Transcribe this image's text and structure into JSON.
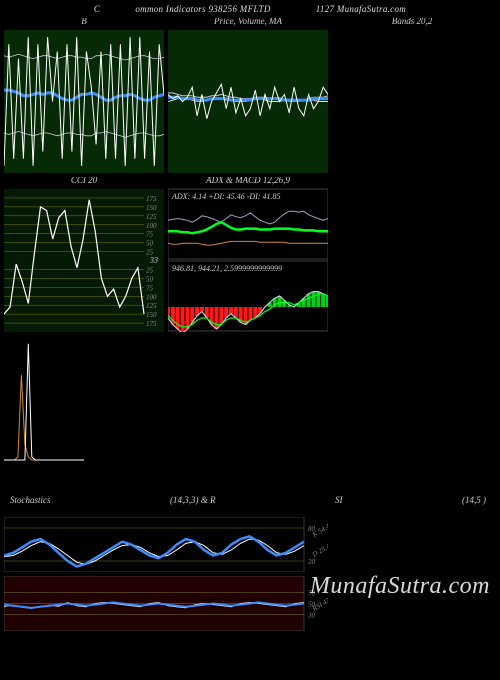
{
  "header": {
    "left": "C",
    "center": "ommon  Indicators 938256   MFLTD",
    "right": "1127 MunafaSutra.com"
  },
  "watermark": "MunafaSutra.com",
  "panels": {
    "bollinger": {
      "title": "B",
      "bg": "#052a05",
      "price_color": "#ffffff",
      "ma_color": "#3a8cff",
      "band_color": "#c8c8d8",
      "price": [
        95,
        10,
        90,
        20,
        90,
        5,
        95,
        10,
        85,
        5,
        50,
        15,
        90,
        10,
        85,
        5,
        95,
        15,
        40,
        80,
        15,
        90,
        10,
        90,
        10,
        95,
        5,
        90,
        5,
        90,
        15,
        95,
        10,
        45
      ],
      "ma": [
        42,
        42,
        43,
        44,
        46,
        46,
        45,
        44,
        45,
        44,
        44,
        46,
        48,
        49,
        49,
        47,
        45,
        45,
        44,
        45,
        47,
        49,
        49,
        47,
        46,
        46,
        45,
        46,
        48,
        49,
        49,
        47,
        46,
        45
      ],
      "upper": [
        18,
        19,
        18,
        17,
        18,
        19,
        20,
        19,
        18,
        18,
        19,
        20,
        19,
        18,
        18,
        19,
        19,
        20,
        20,
        18,
        18,
        17,
        18,
        19,
        20,
        21,
        20,
        19,
        18,
        18,
        19,
        20,
        20,
        19
      ],
      "lower": [
        72,
        73,
        72,
        71,
        72,
        73,
        74,
        73,
        72,
        72,
        73,
        74,
        73,
        72,
        72,
        73,
        73,
        74,
        74,
        72,
        72,
        71,
        72,
        73,
        74,
        75,
        74,
        73,
        72,
        72,
        73,
        74,
        74,
        73
      ]
    },
    "price_ma": {
      "title": "Price,   Volume,   MA",
      "bg": "#052a05",
      "price_color": "#ffffff",
      "ma_colors": [
        "#3a8cff",
        "#c8c8d8",
        "#e0dada"
      ],
      "price": [
        45,
        48,
        46,
        50,
        47,
        40,
        60,
        45,
        62,
        50,
        44,
        38,
        55,
        40,
        58,
        48,
        60,
        55,
        42,
        60,
        45,
        55,
        40,
        50,
        45,
        58,
        40,
        55,
        60,
        45,
        55,
        50,
        40,
        45
      ],
      "ma1": [
        47,
        47,
        47,
        48,
        48,
        48,
        49,
        49,
        49,
        48,
        48,
        48,
        48,
        49,
        49,
        49,
        49,
        49,
        48,
        48,
        48,
        48,
        48,
        48,
        49,
        49,
        49,
        49,
        49,
        49,
        48,
        48,
        48,
        48
      ],
      "ma2": [
        44,
        44,
        45,
        46,
        46,
        46,
        47,
        47,
        47,
        46,
        46,
        45,
        46,
        47,
        47,
        48,
        48,
        48,
        47,
        47,
        47,
        48,
        48,
        49,
        49,
        50,
        50,
        50,
        49,
        48,
        47,
        47,
        47,
        46
      ],
      "ma3": [
        50,
        49,
        48,
        48,
        48,
        49,
        50,
        50,
        49,
        48,
        48,
        48,
        49,
        49,
        50,
        50,
        50,
        49,
        48,
        48,
        49,
        50,
        50,
        50,
        49,
        49,
        49,
        49,
        49,
        49,
        49,
        50,
        50,
        50
      ]
    },
    "bands": {
      "title": "Bands 20,2",
      "text_color": "#ccc"
    },
    "cci": {
      "title": "CCI 20",
      "bg": "#051a05",
      "line_color": "#ffffff",
      "grid_color": "#7a7a1a",
      "readout": "33",
      "levels": [
        175,
        150,
        125,
        100,
        75,
        50,
        25,
        25,
        50,
        75,
        100,
        125,
        150,
        175
      ],
      "y_ticks": [
        -175,
        -150,
        -125,
        -100,
        -75,
        -50,
        -25,
        25,
        50,
        75,
        100,
        125,
        150,
        175
      ],
      "series": [
        -150,
        -130,
        -10,
        -60,
        -120,
        20,
        150,
        140,
        60,
        120,
        140,
        40,
        -20,
        60,
        170,
        80,
        -50,
        -100,
        -80,
        -130,
        -100,
        -50,
        -20,
        -150
      ]
    },
    "adx_macd": {
      "title": "ADX   & MACD 12,26,9",
      "bg_top": "#000",
      "bg_bot": "#000",
      "border": "#666",
      "readout_top": "ADX: 4.14   +DI: 45.46   -DI: 41.85",
      "readout_bot": "946.81,  944.21,  2.5999999999999",
      "adx_color": "#00ff20",
      "pdi_color": "#d08830",
      "mdi_color": "#a0a0c0",
      "adx": [
        28,
        28,
        28,
        27,
        27,
        26,
        27,
        28,
        30,
        33,
        36,
        38,
        35,
        32,
        30,
        30,
        31,
        31,
        31,
        30,
        30,
        30,
        31,
        31,
        31,
        31,
        30,
        30,
        29,
        29,
        29,
        28,
        28,
        28
      ],
      "pdi": [
        15,
        14,
        14,
        15,
        15,
        15,
        15,
        14,
        13,
        13,
        14,
        15,
        16,
        17,
        17,
        17,
        17,
        17,
        17,
        16,
        16,
        16,
        16,
        16,
        16,
        15,
        15,
        15,
        15,
        15,
        15,
        15,
        15,
        15
      ],
      "mdi": [
        40,
        41,
        42,
        41,
        40,
        38,
        41,
        45,
        44,
        42,
        40,
        38,
        42,
        46,
        44,
        43,
        45,
        48,
        44,
        40,
        38,
        36,
        38,
        43,
        47,
        50,
        50,
        49,
        50,
        46,
        44,
        42,
        40,
        42
      ],
      "macd_line_color": "#c8c8d8",
      "macd_signal_color": "#00ff20",
      "macd_hist_neg": "#ff1818",
      "macd_hist_pos": "#00d018",
      "macd": [
        -5,
        -8,
        -10,
        -12,
        -10,
        -7,
        -4,
        -2,
        -5,
        -8,
        -10,
        -8,
        -5,
        -3,
        -5,
        -7,
        -8,
        -6,
        -5,
        -3,
        0,
        2,
        4,
        5,
        3,
        1,
        0,
        2,
        4,
        6,
        7,
        7,
        6,
        5
      ],
      "signal": [
        -4,
        -6,
        -8,
        -9,
        -9,
        -8,
        -6,
        -5,
        -5,
        -7,
        -8,
        -8,
        -6,
        -5,
        -5,
        -6,
        -7,
        -6,
        -5,
        -4,
        -2,
        -1,
        1,
        2,
        2,
        2,
        1,
        2,
        3,
        4,
        5,
        6,
        6,
        5
      ]
    },
    "lower_left": {
      "colors": [
        "#d08830",
        "#ffffff"
      ],
      "orange": [
        20,
        20,
        20,
        20,
        22,
        75,
        30,
        22,
        20,
        20,
        20,
        20,
        20,
        20,
        20,
        20,
        20,
        20,
        20,
        20,
        20,
        20,
        20,
        20
      ],
      "white": [
        20,
        20,
        20,
        20,
        20,
        20,
        20,
        95,
        22,
        20,
        20,
        20,
        20,
        20,
        20,
        20,
        20,
        20,
        20,
        20,
        20,
        20,
        20,
        20
      ]
    },
    "stoch_row": {
      "left": "Stochastics",
      "mid": "(14,3,3) & R",
      "mid2": "SI",
      "right": "(14,5                               )"
    },
    "stoch": {
      "bg": "#000",
      "border": "#555",
      "grid_color": "#7a7a1a",
      "k_color": "#3a8cff",
      "d_color": "#ffffff",
      "ticks": [
        80,
        20
      ],
      "labels": [
        "K 54.4",
        "D 25.4"
      ],
      "k": [
        30,
        35,
        45,
        55,
        60,
        50,
        35,
        20,
        10,
        15,
        25,
        35,
        45,
        55,
        50,
        40,
        30,
        25,
        35,
        50,
        60,
        55,
        40,
        30,
        35,
        50,
        60,
        65,
        55,
        40,
        30,
        35,
        45,
        55
      ],
      "d": [
        28,
        30,
        38,
        48,
        55,
        52,
        42,
        30,
        18,
        14,
        20,
        30,
        40,
        48,
        50,
        45,
        35,
        28,
        30,
        40,
        52,
        55,
        48,
        35,
        32,
        40,
        52,
        60,
        58,
        48,
        35,
        32,
        38,
        48
      ]
    },
    "rsi": {
      "bg": "#200000",
      "border": "#555",
      "grid_color": "#7a7a1a",
      "line_color": "#3a8cff",
      "white_color": "#ffffff",
      "ticks": [
        70,
        50,
        30
      ],
      "label": "RSI 47",
      "series": [
        48,
        46,
        44,
        42,
        44,
        46,
        48,
        50,
        48,
        46,
        48,
        50,
        52,
        50,
        48,
        46,
        48,
        50,
        48,
        46,
        44,
        46,
        48,
        50,
        48,
        46,
        48,
        50,
        52,
        50,
        48,
        46,
        48,
        50
      ],
      "white": [
        45,
        47,
        43,
        41,
        45,
        47,
        45,
        52,
        46,
        44,
        50,
        52,
        50,
        48,
        46,
        44,
        50,
        52,
        46,
        44,
        42,
        48,
        50,
        48,
        46,
        44,
        50,
        52,
        50,
        48,
        46,
        44,
        50,
        52
      ]
    }
  }
}
